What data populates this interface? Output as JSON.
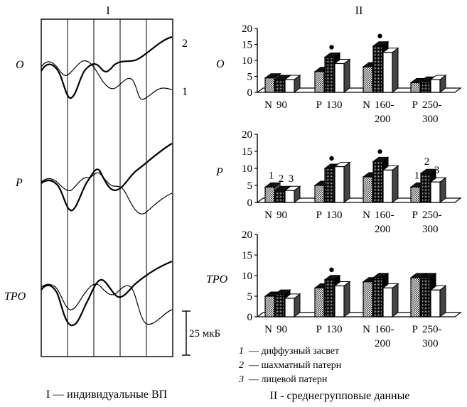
{
  "figure": {
    "panel_I_roman": "I",
    "panel_II_roman": "II",
    "caption_I": "I — индивидуальные ВП",
    "caption_II": "II - среднегрупповые данные",
    "scale_label": "25 мкБ",
    "curve_label_2": "2",
    "curve_label_1": "1"
  },
  "legend": [
    {
      "num": "1",
      "text": "— диффузный засвет"
    },
    {
      "num": "2",
      "text": "— шахматный патерн"
    },
    {
      "num": "3",
      "text": "— лицевой патерн"
    }
  ],
  "chart_data": [
    {
      "type": "bar",
      "panel": "O",
      "row_label": "O",
      "categories": [
        [
          "N",
          "90"
        ],
        [
          "P",
          "130"
        ],
        [
          "N",
          "160-",
          "200"
        ],
        [
          "P",
          "250-",
          "300"
        ]
      ],
      "ylim": [
        0,
        20
      ],
      "yticks": [
        "0",
        "5",
        "10",
        "15",
        "20"
      ],
      "series": [
        {
          "num": "1",
          "values": [
            4.5,
            6.5,
            8,
            3
          ]
        },
        {
          "num": "2",
          "values": [
            4,
            11,
            14.5,
            3.5
          ]
        },
        {
          "num": "3",
          "values": [
            4,
            9,
            12.5,
            4
          ]
        }
      ],
      "markers": [
        {
          "category": 1,
          "series": 1
        },
        {
          "category": 2,
          "series": 1
        }
      ],
      "series_numbers": []
    },
    {
      "type": "bar",
      "panel": "P",
      "row_label": "P",
      "categories": [
        [
          "N",
          "90"
        ],
        [
          "P",
          "130"
        ],
        [
          "N",
          "160-",
          "200"
        ],
        [
          "P",
          "250-",
          "300"
        ]
      ],
      "ylim": [
        0,
        20
      ],
      "yticks": [
        "0",
        "5",
        "10",
        "15",
        "20"
      ],
      "series": [
        {
          "num": "1",
          "values": [
            4.5,
            5,
            7.5,
            4.5
          ]
        },
        {
          "num": "2",
          "values": [
            3.5,
            10,
            12,
            8.5
          ]
        },
        {
          "num": "3",
          "values": [
            3.5,
            10.5,
            9.5,
            6
          ]
        }
      ],
      "markers": [
        {
          "category": 1,
          "series": 1
        },
        {
          "category": 2,
          "series": 1
        }
      ],
      "series_numbers": [
        0,
        3
      ]
    },
    {
      "type": "bar",
      "panel": "TPO",
      "row_label": "TPO",
      "categories": [
        [
          "N",
          "90"
        ],
        [
          "P",
          "130"
        ],
        [
          "N",
          "160-",
          "200"
        ],
        [
          "P",
          "250-",
          "300"
        ]
      ],
      "ylim": [
        0,
        20
      ],
      "yticks": [
        "0",
        "5",
        "10",
        "15",
        "20"
      ],
      "series": [
        {
          "num": "1",
          "values": [
            5,
            7,
            8.5,
            9.5
          ]
        },
        {
          "num": "2",
          "values": [
            5.5,
            9,
            9.5,
            9.5
          ]
        },
        {
          "num": "3",
          "values": [
            4.5,
            7.5,
            7,
            6.5
          ]
        }
      ],
      "markers": [
        {
          "category": 1,
          "series": 1
        }
      ],
      "series_numbers": []
    }
  ]
}
